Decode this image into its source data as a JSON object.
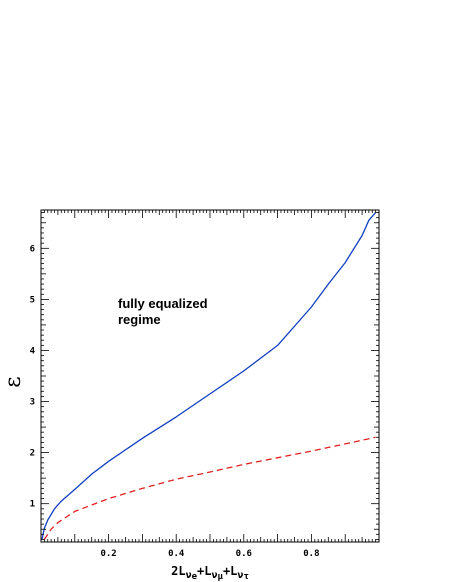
{
  "chart_data": {
    "type": "line",
    "xlim": [
      0,
      1
    ],
    "ylim": [
      0.25,
      6.75
    ],
    "x_ticks": [
      0.2,
      0.4,
      0.6,
      0.8
    ],
    "y_ticks": [
      1,
      2,
      3,
      4,
      5,
      6
    ],
    "x_tick_labels": [
      "0.2",
      "0.4",
      "0.6",
      "0.8"
    ],
    "y_tick_labels": [
      "1",
      "2",
      "3",
      "4",
      "5",
      "6"
    ],
    "xlabel": {
      "prefix": "2L",
      "sub1": "ν",
      "sub1b": "e",
      "plus1": "+L",
      "sub2": "ν",
      "sub2b": "μ",
      "plus2": "+L",
      "sub3": "ν",
      "sub3b": "τ"
    },
    "ylabel": "ε",
    "annotation": [
      "fully equalized",
      "regime"
    ],
    "grid": false,
    "legend": "none",
    "series": [
      {
        "color": "#1040c0",
        "style": "solid",
        "x": [
          0.003,
          0.01,
          0.02,
          0.04,
          0.06,
          0.1,
          0.15,
          0.2,
          0.3,
          0.4,
          0.5,
          0.6,
          0.7,
          0.8,
          0.85,
          0.9,
          0.95,
          0.97,
          0.99
        ],
        "y": [
          0.3,
          0.52,
          0.68,
          0.9,
          1.05,
          1.28,
          1.58,
          1.83,
          2.28,
          2.7,
          3.15,
          3.6,
          4.1,
          4.85,
          5.3,
          5.72,
          6.25,
          6.55,
          6.7
        ]
      },
      {
        "color": "#e02020",
        "style": "dashed",
        "x": [
          0.01,
          0.03,
          0.05,
          0.1,
          0.2,
          0.3,
          0.4,
          0.5,
          0.6,
          0.7,
          0.8,
          0.9,
          0.99
        ],
        "y": [
          0.3,
          0.5,
          0.63,
          0.85,
          1.1,
          1.3,
          1.48,
          1.62,
          1.77,
          1.9,
          2.03,
          2.17,
          2.3
        ]
      }
    ]
  }
}
